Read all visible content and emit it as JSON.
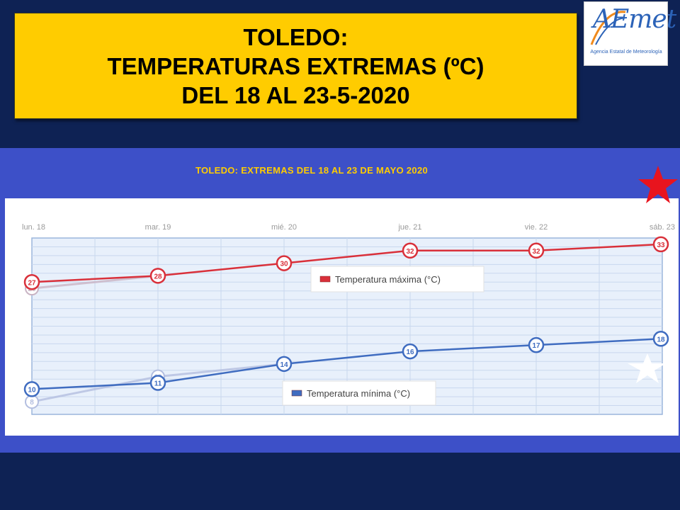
{
  "header": {
    "title_lines": [
      "TOLEDO:",
      "TEMPERATURAS EXTREMAS (ºC)",
      "DEL 18 AL 23-5-2020"
    ]
  },
  "logo": {
    "word": "AEmet",
    "caption": "Agencia Estatal de Meteorología"
  },
  "colors": {
    "background": "#0e2254",
    "title_box": "#ffcc00",
    "chart_frame": "#3d50c8",
    "max_series": "#d9303a",
    "min_series": "#3f6cc0",
    "star_red": "#e8141e",
    "chart_title": "#ffcc00"
  },
  "icons": [
    "aemet-logo",
    "red-star-icon",
    "white-star-icon"
  ],
  "chart_data": {
    "type": "line",
    "title": "TOLEDO: EXTREMAS DEL 18 AL 23 DE MAYO 2020",
    "categories": [
      "lun. 18",
      "mar. 19",
      "mié. 20",
      "jue. 21",
      "vie. 22",
      "sáb. 23"
    ],
    "ylim": [
      6,
      34
    ],
    "grid": true,
    "series": [
      {
        "name": "Temperatura máxima (°C)",
        "color": "#d9303a",
        "values": [
          27,
          28,
          30,
          32,
          32,
          33
        ]
      },
      {
        "name": "Temperatura mínima (°C)",
        "color": "#3f6cc0",
        "values": [
          10,
          11,
          14,
          16,
          17,
          18
        ]
      }
    ],
    "faded_series": [
      {
        "color": "#c9b4c4",
        "values": [
          26,
          28
        ]
      },
      {
        "color": "#b3bee0",
        "values": [
          8,
          12,
          14
        ]
      }
    ],
    "legend": [
      {
        "label": "Temperatura máxima (°C)",
        "color": "#d9303a",
        "placement": "upper-middle"
      },
      {
        "label": "Temperatura mínima (°C)",
        "color": "#3f6cc0",
        "placement": "lower-middle"
      }
    ]
  }
}
